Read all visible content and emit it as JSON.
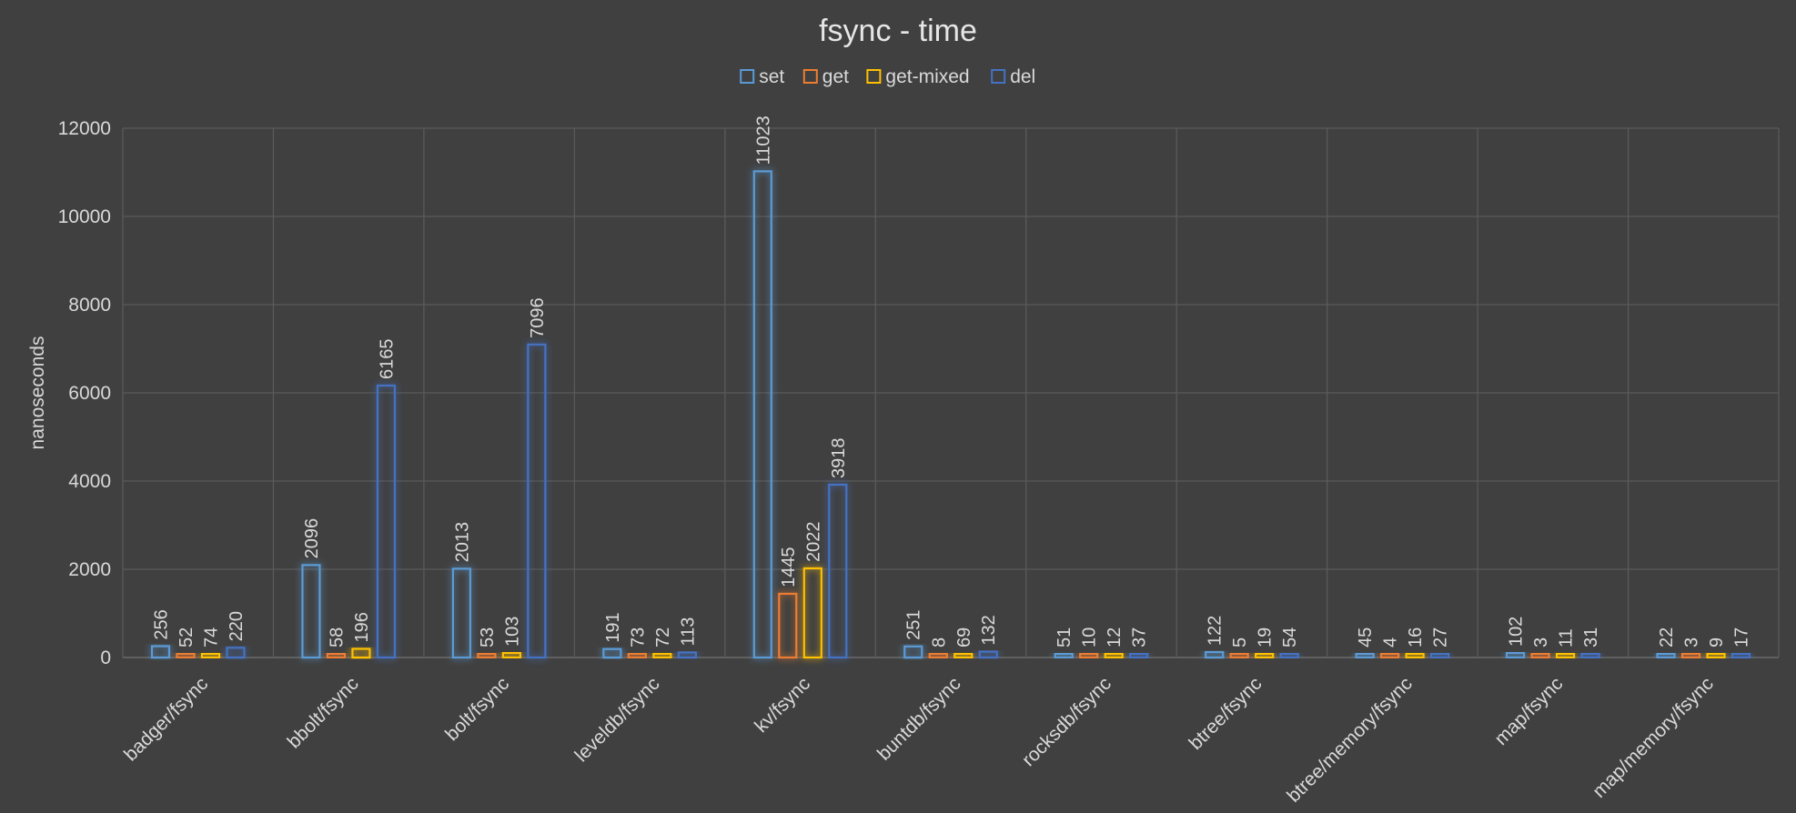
{
  "chart_data": {
    "type": "bar",
    "title": "fsync - time",
    "ylabel": "nanoseconds",
    "xlabel": "",
    "ylim": [
      0,
      12000
    ],
    "yticks": [
      0,
      2000,
      4000,
      6000,
      8000,
      10000,
      12000
    ],
    "grid": true,
    "legend_position": "top",
    "categories": [
      "badger/fsync",
      "bbolt/fsync",
      "bolt/fsync",
      "leveldb/fsync",
      "kv/fsync",
      "buntdb/fsync",
      "rocksdb/fsync",
      "btree/fsync",
      "btree/memory/fsync",
      "map/fsync",
      "map/memory/fsync"
    ],
    "series": [
      {
        "name": "set",
        "color": "#5b9bd5",
        "values": [
          256,
          2096,
          2013,
          191,
          11023,
          251,
          51,
          122,
          45,
          102,
          22
        ]
      },
      {
        "name": "get",
        "color": "#ed7d31",
        "values": [
          52,
          58,
          53,
          73,
          1445,
          8,
          10,
          5,
          4,
          3,
          3
        ]
      },
      {
        "name": "get-mixed",
        "color": "#ffc000",
        "values": [
          74,
          196,
          103,
          72,
          2022,
          69,
          12,
          19,
          16,
          11,
          9
        ]
      },
      {
        "name": "del",
        "color": "#4472c4",
        "values": [
          220,
          6165,
          7096,
          113,
          3918,
          132,
          37,
          54,
          27,
          31,
          17
        ]
      }
    ]
  }
}
